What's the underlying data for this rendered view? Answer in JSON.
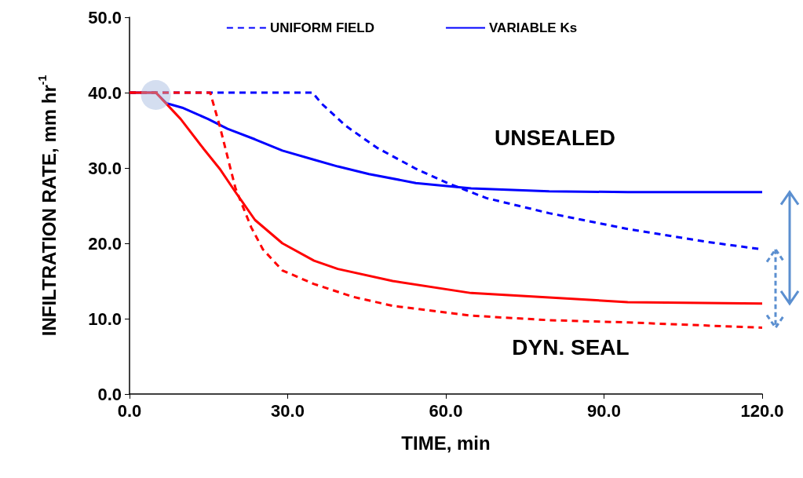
{
  "chart_data": {
    "type": "line",
    "xlabel": "TIME, min",
    "ylabel": "INFILTRATION RATE, mm hr$^{-1}$",
    "xlim": [
      0,
      120
    ],
    "xticks": [
      {
        "value": 0,
        "label": "0.0"
      },
      {
        "value": 30,
        "label": "30.0"
      },
      {
        "value": 60,
        "label": "60.0"
      },
      {
        "value": 90,
        "label": "90.0"
      },
      {
        "value": 120,
        "label": "120.0"
      }
    ],
    "ylim": [
      0,
      50
    ],
    "yticks": [
      {
        "value": 0,
        "label": "0.0"
      },
      {
        "value": 10,
        "label": "10.0"
      },
      {
        "value": 20,
        "label": "20.0"
      },
      {
        "value": 30,
        "label": "30.0"
      },
      {
        "value": 40,
        "label": "40.0"
      },
      {
        "value": 50,
        "label": "50.0"
      }
    ],
    "grid": false,
    "legend": "top",
    "marker": "none",
    "series": [
      {
        "name": "UNIFORM FIELD",
        "color": "#0000ff",
        "line_style": "dashed",
        "x": [
          0,
          34.7,
          36.5,
          41,
          46.9,
          54.3,
          60.3,
          67.7,
          79.6,
          94.5,
          109.4,
          120
        ],
        "values": [
          40,
          40,
          38.5,
          35.6,
          32.7,
          29.9,
          28.0,
          26.0,
          24.0,
          21.9,
          20.2,
          19.2
        ]
      },
      {
        "name": "VARIABLE Ks",
        "color": "#0000ff",
        "line_style": "solid",
        "x": [
          0,
          5,
          7,
          10,
          14.9,
          18.6,
          23.8,
          29,
          35,
          39.5,
          45.4,
          54.3,
          64.8,
          79.6,
          94.5,
          120
        ],
        "values": [
          40,
          40,
          38.6,
          38,
          36.5,
          35.2,
          33.8,
          32.3,
          31.1,
          30.2,
          29.2,
          28.0,
          27.3,
          26.9,
          26.8,
          26.8
        ]
      },
      {
        "color": "#ff0000",
        "line_style": "dashed",
        "x": [
          0,
          15.3,
          17.1,
          20.1,
          23.1,
          25.3,
          29,
          35,
          42.4,
          49.9,
          64.8,
          79.6,
          94.5,
          120
        ],
        "values": [
          40,
          40,
          35.6,
          27.3,
          22.1,
          19.2,
          16.4,
          14.6,
          12.9,
          11.7,
          10.4,
          9.8,
          9.5,
          8.8
        ]
      },
      {
        "color": "#ff0000",
        "line_style": "solid",
        "x": [
          0,
          5,
          9.7,
          14.1,
          17.1,
          20.1,
          23.8,
          29,
          35,
          39.5,
          49.9,
          64.8,
          79.6,
          94.5,
          120
        ],
        "values": [
          40,
          40,
          36.5,
          32.5,
          29.9,
          26.8,
          23.1,
          20,
          17.7,
          16.6,
          15,
          13.4,
          12.8,
          12.2,
          12
        ]
      }
    ],
    "annotations": [
      "UNSEALED",
      "DYN. SEAL"
    ]
  }
}
